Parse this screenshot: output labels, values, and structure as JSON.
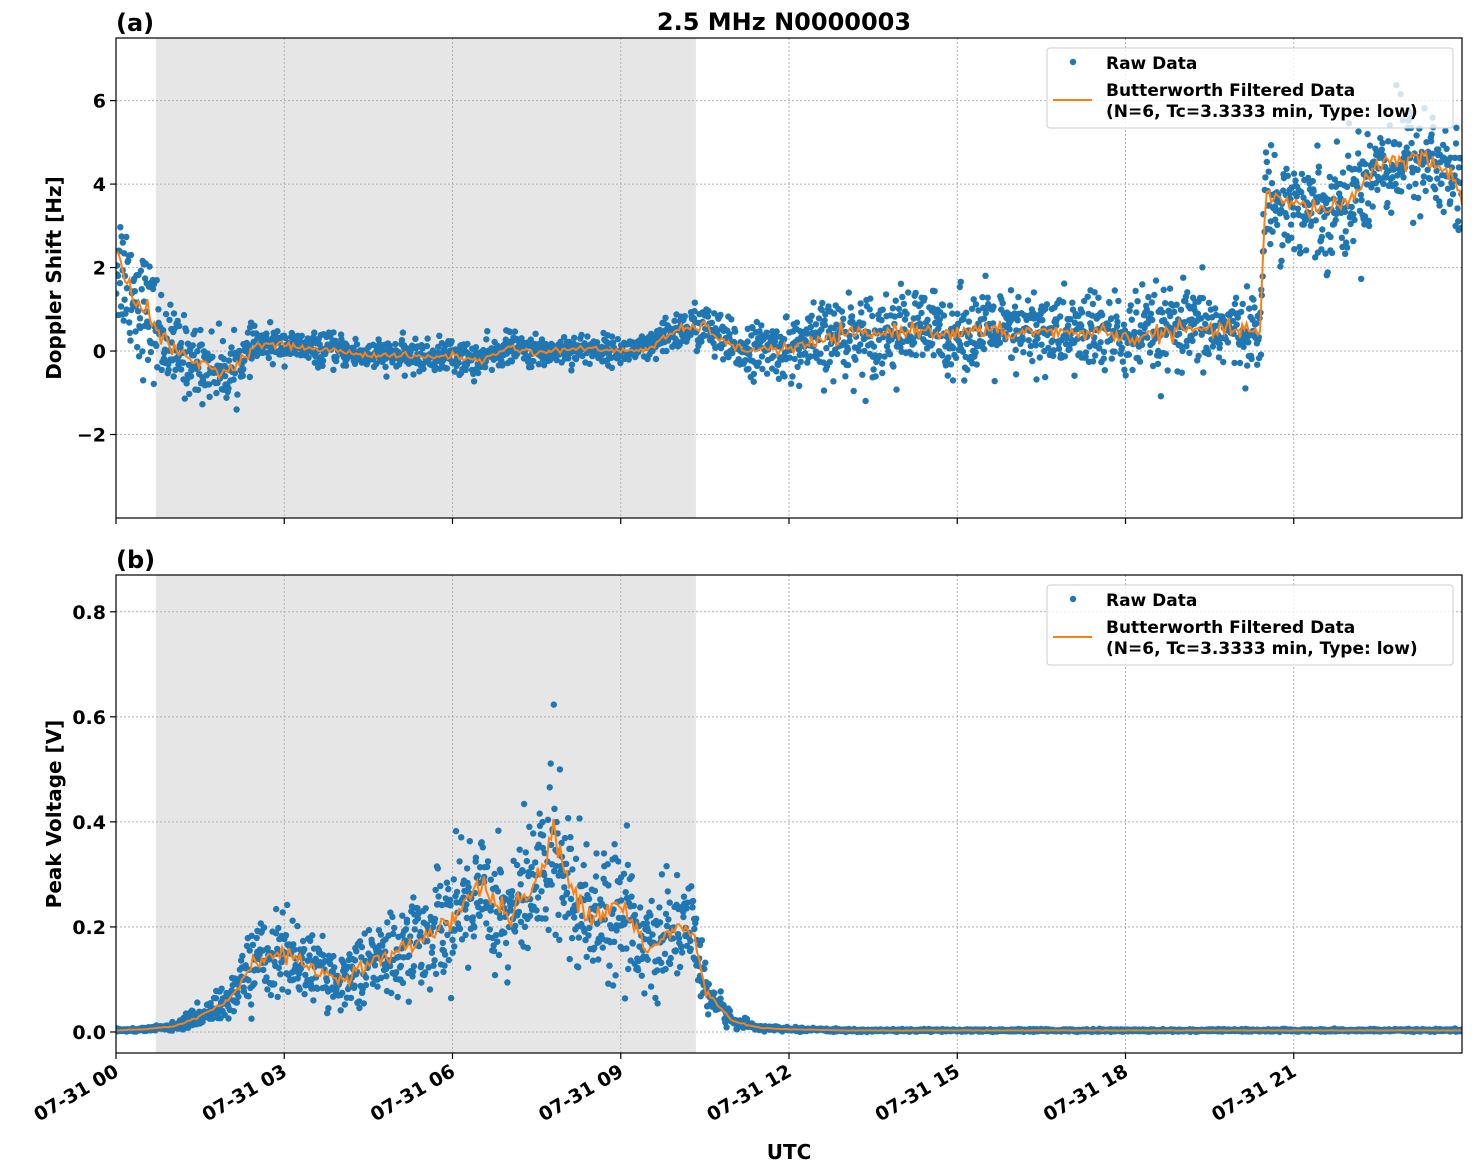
{
  "title": "2.5 MHz N0000003",
  "xlabel": "UTC",
  "colors": {
    "raw": "#1f77b4",
    "filtered": "#ff7f0e",
    "shade": "#e6e6e6",
    "grid": "#b0b0b0"
  },
  "legend": {
    "raw": "Raw Data",
    "filtered_line1": "Butterworth Filtered Data",
    "filtered_line2": "(N=6, Tc=3.3333 min, Type: low)",
    "placement": "top-right"
  },
  "chart_data": [
    {
      "type": "scatter",
      "panel_label": "(a)",
      "ylabel": "Doppler Shift [Hz]",
      "x_unit": "hours UTC on 07-31",
      "xlim": [
        0,
        24
      ],
      "ylim": [
        -4,
        7.5
      ],
      "xticks": [
        0,
        3,
        6,
        9,
        12,
        15,
        18,
        21
      ],
      "xtick_labels": [
        "07-31 00",
        "07-31 03",
        "07-31 06",
        "07-31 09",
        "07-31 12",
        "07-31 15",
        "07-31 18",
        "07-31 21"
      ],
      "yticks": [
        -2,
        0,
        2,
        4,
        6
      ],
      "ytick_labels": [
        "−2",
        "0",
        "2",
        "4",
        "6"
      ],
      "grid": true,
      "shaded_interval": [
        0.71,
        10.34
      ],
      "x": [
        0,
        0.5,
        1,
        1.5,
        2,
        2.5,
        3,
        3.5,
        4,
        4.5,
        5,
        5.5,
        6,
        6.5,
        7,
        7.5,
        8,
        8.5,
        9,
        9.5,
        10,
        10.5,
        11,
        11.5,
        12,
        12.5,
        13,
        13.5,
        14,
        14.5,
        15,
        15.5,
        16,
        16.5,
        17,
        17.5,
        18,
        18.5,
        19,
        19.5,
        20,
        20.4,
        20.5,
        21,
        21.5,
        22,
        22.5,
        23,
        23.5,
        24
      ],
      "series": [
        {
          "name": "Butterworth Filtered Data",
          "values": [
            2.2,
            1.0,
            0.0,
            -0.3,
            -0.5,
            0.15,
            0.15,
            0.05,
            0.0,
            -0.1,
            -0.1,
            -0.15,
            -0.1,
            -0.25,
            0.1,
            -0.05,
            0.05,
            0.05,
            0.0,
            0.05,
            0.5,
            0.6,
            0.05,
            0.05,
            0.05,
            0.2,
            0.4,
            0.4,
            0.5,
            0.5,
            0.4,
            0.5,
            0.4,
            0.5,
            0.4,
            0.5,
            0.3,
            0.4,
            0.5,
            0.5,
            0.5,
            0.5,
            3.7,
            3.5,
            3.4,
            3.6,
            4.5,
            4.6,
            4.6,
            3.8
          ]
        },
        {
          "name": "Raw Data",
          "spread": [
            1.3,
            1.2,
            0.8,
            0.7,
            0.6,
            0.35,
            0.3,
            0.3,
            0.3,
            0.3,
            0.3,
            0.3,
            0.35,
            0.35,
            0.3,
            0.3,
            0.3,
            0.3,
            0.25,
            0.3,
            0.4,
            0.5,
            0.5,
            0.5,
            0.6,
            0.75,
            0.8,
            0.8,
            0.8,
            0.8,
            0.8,
            0.8,
            0.8,
            0.8,
            0.8,
            0.85,
            0.85,
            0.85,
            0.8,
            0.8,
            0.7,
            0.7,
            1.0,
            1.0,
            1.0,
            1.1,
            1.1,
            1.1,
            1.1,
            1.1
          ]
        }
      ]
    },
    {
      "type": "scatter",
      "panel_label": "(b)",
      "ylabel": "Peak Voltage [V]",
      "x_unit": "hours UTC on 07-31",
      "xlim": [
        0,
        24
      ],
      "ylim": [
        -0.04,
        0.87
      ],
      "xticks": [
        0,
        3,
        6,
        9,
        12,
        15,
        18,
        21
      ],
      "xtick_labels": [
        "07-31 00",
        "07-31 03",
        "07-31 06",
        "07-31 09",
        "07-31 12",
        "07-31 15",
        "07-31 18",
        "07-31 21"
      ],
      "yticks": [
        0,
        0.2,
        0.4,
        0.6,
        0.8
      ],
      "ytick_labels": [
        "0.0",
        "0.2",
        "0.4",
        "0.6",
        "0.8"
      ],
      "grid": true,
      "shaded_interval": [
        0.71,
        10.34
      ],
      "x": [
        0,
        0.5,
        1,
        1.5,
        2,
        2.5,
        3,
        3.5,
        4,
        4.5,
        5,
        5.5,
        6,
        6.5,
        7,
        7.5,
        7.8,
        8,
        8.5,
        9,
        9.5,
        10,
        10.3,
        10.5,
        11,
        11.5,
        12,
        13,
        15,
        18,
        21,
        24
      ],
      "series": [
        {
          "name": "Butterworth Filtered Data",
          "values": [
            0.003,
            0.005,
            0.01,
            0.03,
            0.06,
            0.14,
            0.15,
            0.12,
            0.1,
            0.13,
            0.15,
            0.18,
            0.22,
            0.28,
            0.22,
            0.28,
            0.38,
            0.3,
            0.22,
            0.25,
            0.15,
            0.2,
            0.19,
            0.08,
            0.02,
            0.008,
            0.005,
            0.003,
            0.003,
            0.003,
            0.003,
            0.003
          ]
        },
        {
          "name": "Raw Data",
          "spread": [
            0.003,
            0.003,
            0.006,
            0.015,
            0.03,
            0.06,
            0.07,
            0.05,
            0.045,
            0.06,
            0.07,
            0.08,
            0.09,
            0.11,
            0.1,
            0.12,
            0.16,
            0.12,
            0.1,
            0.11,
            0.07,
            0.07,
            0.07,
            0.04,
            0.01,
            0.004,
            0.003,
            0.002,
            0.002,
            0.002,
            0.002,
            0.002
          ]
        }
      ]
    }
  ]
}
